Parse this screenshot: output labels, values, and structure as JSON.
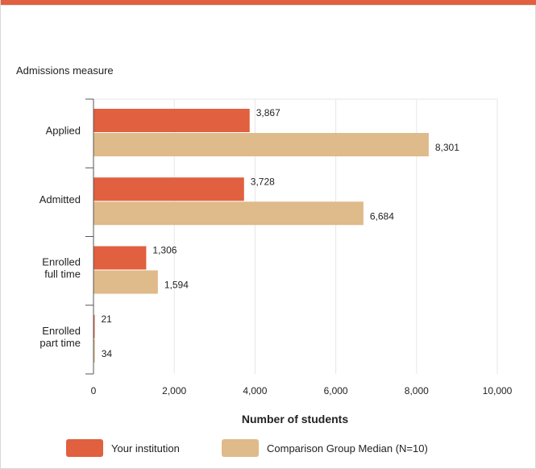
{
  "colors": {
    "accent_bar": "#e0603f",
    "series_primary": "#e0603f",
    "series_comparison": "#dfba8a",
    "grid": "#e6e6e6",
    "axis": "#555555"
  },
  "chart_data": {
    "type": "bar",
    "orientation": "horizontal",
    "category_axis_title": "Admissions measure",
    "categories": [
      [
        "Applied"
      ],
      [
        "Admitted"
      ],
      [
        "Enrolled",
        "full time"
      ],
      [
        "Enrolled",
        "part time"
      ]
    ],
    "series": [
      {
        "name": "Your institution",
        "values": [
          3867,
          3728,
          1306,
          21
        ],
        "labels": [
          "3,867",
          "3,728",
          "1,306",
          "21"
        ]
      },
      {
        "name": "Comparison Group Median (N=10)",
        "values": [
          8301,
          6684,
          1594,
          34
        ],
        "labels": [
          "8,301",
          "6,684",
          "1,594",
          "34"
        ]
      }
    ],
    "xlabel": "Number of students",
    "xlim": [
      0,
      10000
    ],
    "xticks": [
      0,
      2000,
      4000,
      6000,
      8000,
      10000
    ],
    "xtick_labels": [
      "0",
      "2,000",
      "4,000",
      "6,000",
      "8,000",
      "10,000"
    ],
    "grid": true,
    "legend_position": "bottom"
  }
}
